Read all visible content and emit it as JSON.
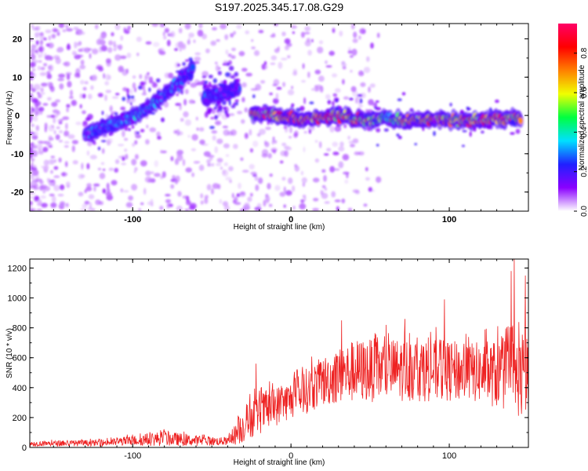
{
  "title": "S197.2025.345.17.08.G29",
  "colorbar": {
    "label": "Normalized spectral amplitude",
    "ticks": [
      "0.0",
      "0.2",
      "0.4",
      "0.6",
      "0.8"
    ],
    "tick_values": [
      0.0,
      0.2,
      0.4,
      0.6,
      0.8
    ],
    "range": [
      0.0,
      0.95
    ],
    "colors": [
      "#ffffff",
      "#8a00ff",
      "#2020ff",
      "#00e0ff",
      "#00ff40",
      "#f0ff00",
      "#ff8000",
      "#ff0000",
      "#ff0066"
    ]
  },
  "chart_data": [
    {
      "type": "heatmap",
      "name": "spectrogram",
      "xlabel": "Height of straight line (km)",
      "ylabel": "Frequency (Hz)",
      "xlim": [
        -165,
        150
      ],
      "ylim": [
        -25,
        24
      ],
      "xticks": [
        -100,
        0,
        100
      ],
      "xtick_labels": [
        "-100",
        "0",
        "100"
      ],
      "yticks": [
        -20,
        -10,
        0,
        10,
        20
      ],
      "ytick_labels": [
        "-20",
        "-10",
        "0",
        "10",
        "20"
      ],
      "ridges": [
        {
          "segment": "rising",
          "x": [
            -130,
            -110,
            -90,
            -75,
            -62
          ],
          "freq": [
            -5,
            -2,
            2,
            7,
            12
          ],
          "amp": [
            0.35,
            0.3,
            0.35,
            0.3,
            0.25
          ]
        },
        {
          "segment": "mid",
          "x": [
            -55,
            -48,
            -40,
            -33
          ],
          "freq": [
            4.5,
            5.5,
            6,
            7
          ],
          "amp": [
            0.25,
            0.3,
            0.25,
            0.3
          ]
        },
        {
          "segment": "flat",
          "x": [
            -25,
            -10,
            10,
            30,
            50,
            60,
            70,
            90,
            110,
            130,
            145
          ],
          "freq": [
            0.5,
            0,
            -1,
            0,
            -1.5,
            -0.5,
            -1.5,
            -1,
            -1.5,
            -1,
            -0.5
          ],
          "amp": [
            0.7,
            0.75,
            0.8,
            0.7,
            0.65,
            0.4,
            0.6,
            0.7,
            0.7,
            0.75,
            0.6
          ]
        }
      ]
    },
    {
      "type": "line",
      "name": "snr",
      "xlabel": "Height of straight line (km)",
      "ylabel": "SNR (10 * v/v)",
      "xlim": [
        -165,
        150
      ],
      "ylim": [
        0,
        1260
      ],
      "xticks": [
        -100,
        0,
        100
      ],
      "xtick_labels": [
        "-100",
        "0",
        "100"
      ],
      "yticks": [
        0,
        200,
        400,
        600,
        800,
        1000,
        1200
      ],
      "ytick_labels": [
        "0",
        "200",
        "400",
        "600",
        "800",
        "1000",
        "1200"
      ],
      "color": "#ee2222",
      "envelope": {
        "x": [
          -165,
          -120,
          -100,
          -80,
          -60,
          -40,
          -32,
          -25,
          -15,
          0,
          10,
          20,
          30,
          40,
          60,
          80,
          100,
          120,
          140,
          150
        ],
        "base": [
          25,
          30,
          45,
          60,
          45,
          40,
          120,
          200,
          250,
          320,
          380,
          440,
          480,
          510,
          520,
          520,
          510,
          500,
          480,
          450
        ],
        "spread": [
          20,
          25,
          40,
          60,
          40,
          30,
          120,
          160,
          160,
          150,
          180,
          200,
          220,
          250,
          250,
          250,
          240,
          240,
          300,
          350
        ]
      },
      "peaks": [
        {
          "x": -22,
          "y": 560
        },
        {
          "x": 32,
          "y": 850
        },
        {
          "x": 72,
          "y": 860
        },
        {
          "x": 97,
          "y": 990
        },
        {
          "x": 139,
          "y": 1180
        },
        {
          "x": 141,
          "y": 1260
        },
        {
          "x": 148,
          "y": 1150
        }
      ]
    }
  ]
}
